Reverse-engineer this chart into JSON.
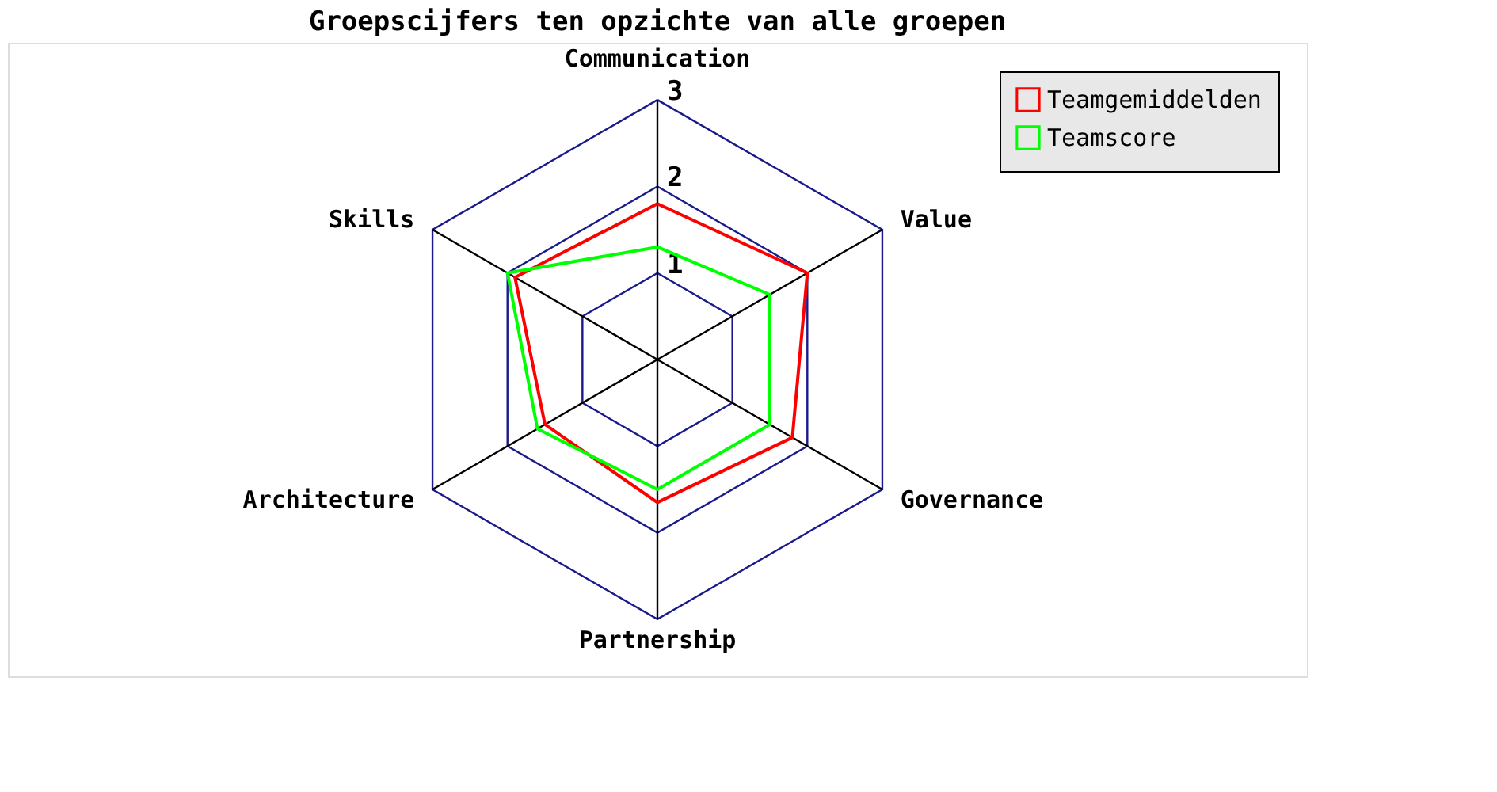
{
  "chart_data": {
    "type": "radar",
    "title": "Groepscijfers ten opzichte van alle groepen",
    "categories": [
      "Communication",
      "Value",
      "Governance",
      "Partnership",
      "Architecture",
      "Skills"
    ],
    "ylim": [
      0,
      3
    ],
    "yticks": [
      1,
      2,
      3
    ],
    "grid": true,
    "legend": "top right",
    "marker": "none",
    "series": [
      {
        "name": "Teamgemiddelden",
        "color": "#ff0000",
        "values": [
          1.8,
          2.0,
          1.8,
          1.65,
          1.5,
          1.9
        ]
      },
      {
        "name": "Teamscore",
        "color": "#00ff00",
        "values": [
          1.3,
          1.5,
          1.5,
          1.5,
          1.6,
          2.0
        ]
      }
    ]
  }
}
